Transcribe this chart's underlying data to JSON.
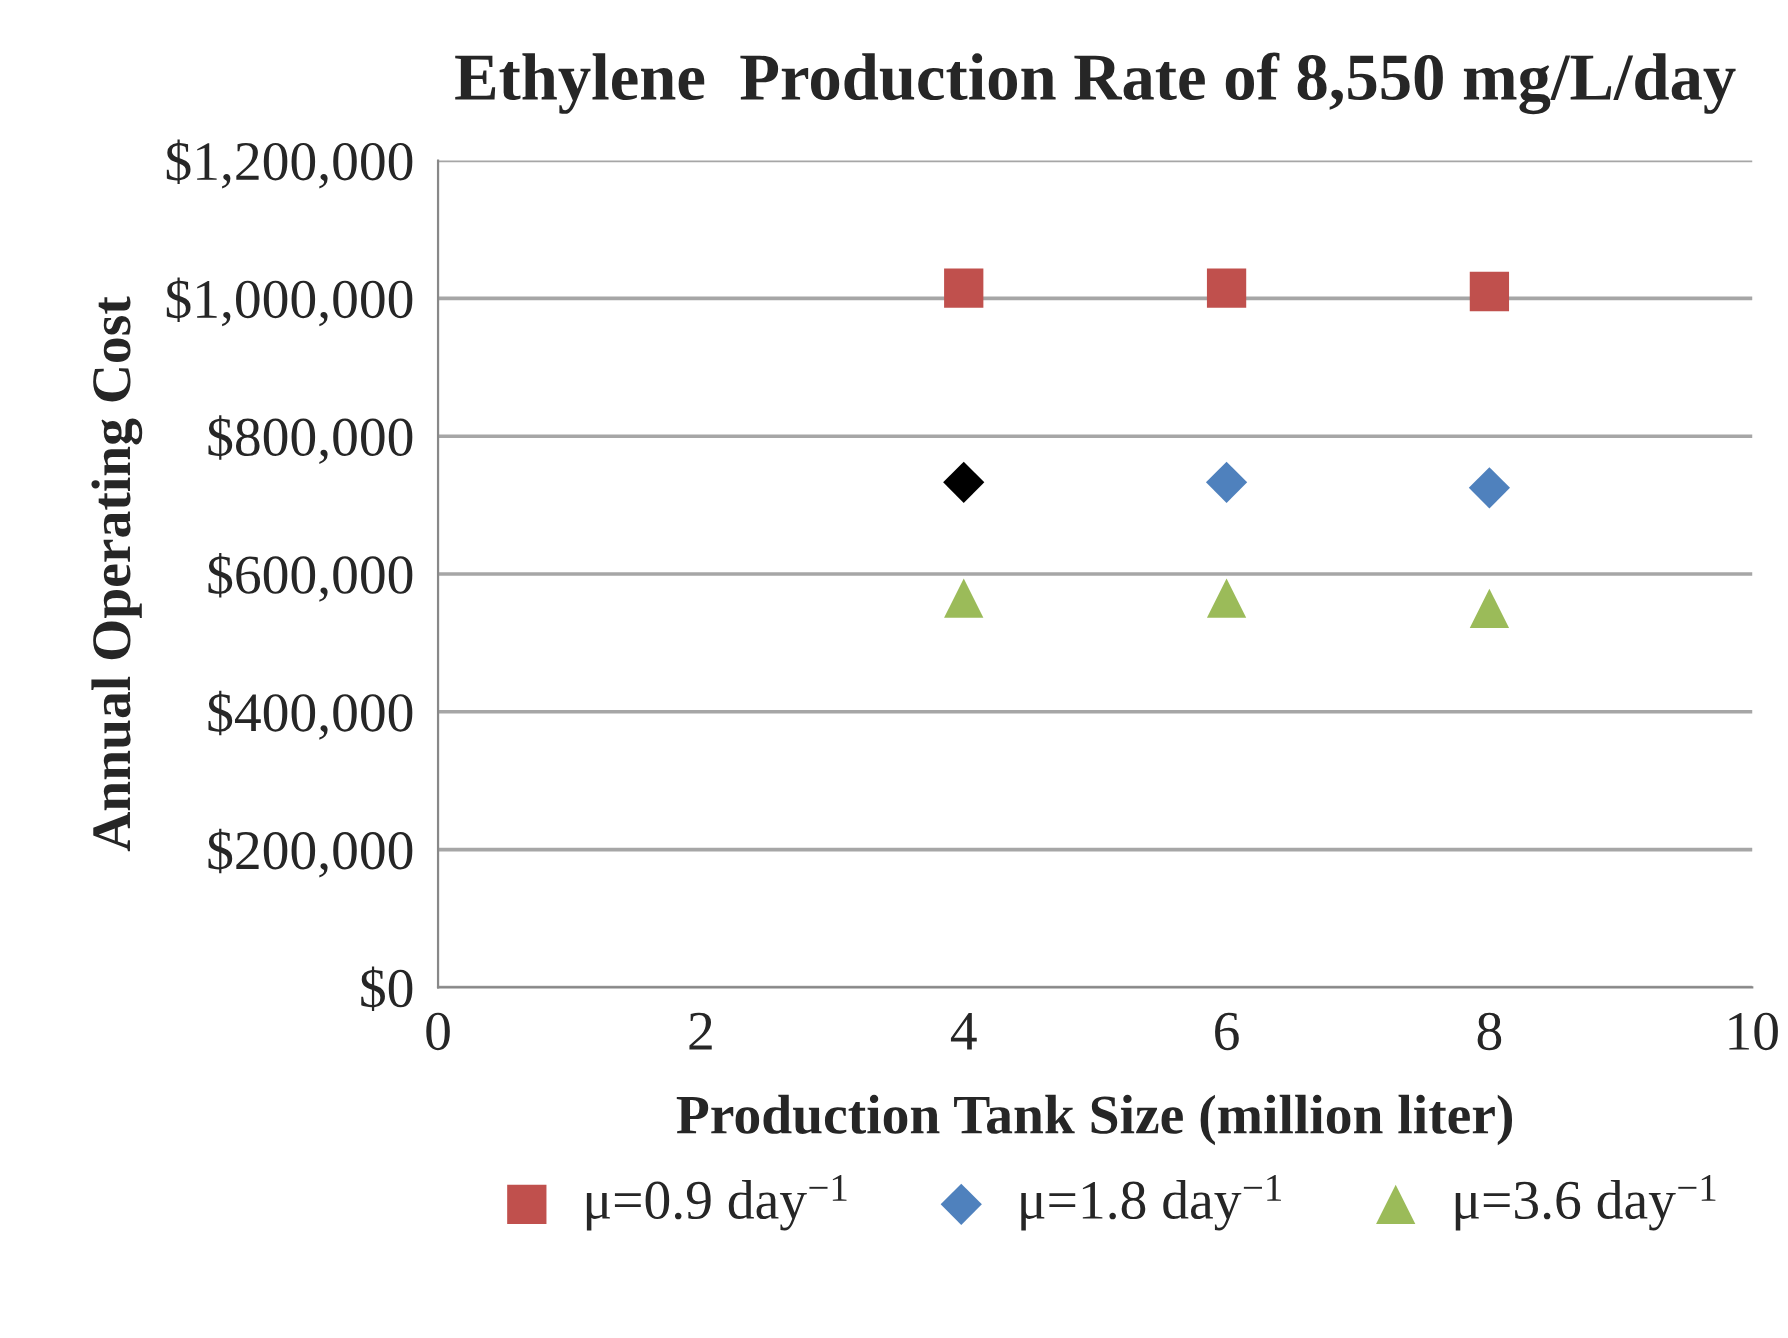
{
  "chart_data": {
    "type": "scatter",
    "title": "Ethylene  Production Rate of 8,550 mg/L/day",
    "xlabel": "Production Tank Size (million liter)",
    "ylabel": "Annual Operating Cost",
    "xlim": [
      0,
      10
    ],
    "xticks": [
      0,
      2,
      4,
      6,
      8,
      10
    ],
    "ylim": [
      0,
      1200000
    ],
    "yticks": [
      {
        "value": 0,
        "label": "$0"
      },
      {
        "value": 200000,
        "label": "$200,000"
      },
      {
        "value": 400000,
        "label": "$400,000"
      },
      {
        "value": 600000,
        "label": "$600,000"
      },
      {
        "value": 800000,
        "label": "$800,000"
      },
      {
        "value": 1000000,
        "label": "$1,000,000"
      },
      {
        "value": 1200000,
        "label": "$1,200,000"
      }
    ],
    "grid": "y",
    "legend": "bottom",
    "series": [
      {
        "name": "μ=0.9 day$^{−1}$",
        "color": "#c0504d",
        "marker": "square",
        "x": [
          4,
          6,
          8
        ],
        "values": [
          1015000,
          1015000,
          1010000
        ]
      },
      {
        "name": "μ=1.8 day$^{−1}$",
        "color": "#4f81bd",
        "colors": [
          "#000000",
          "#4f81bd",
          "#4f81bd"
        ],
        "marker": "diamond",
        "x": [
          4,
          6,
          8
        ],
        "values": [
          733000,
          733000,
          725000
        ]
      },
      {
        "name": "μ=3.6 day$^{−1}$",
        "color": "#9bbb59",
        "marker": "triangle",
        "x": [
          4,
          6,
          8
        ],
        "values": [
          565000,
          565000,
          550000
        ]
      }
    ]
  }
}
